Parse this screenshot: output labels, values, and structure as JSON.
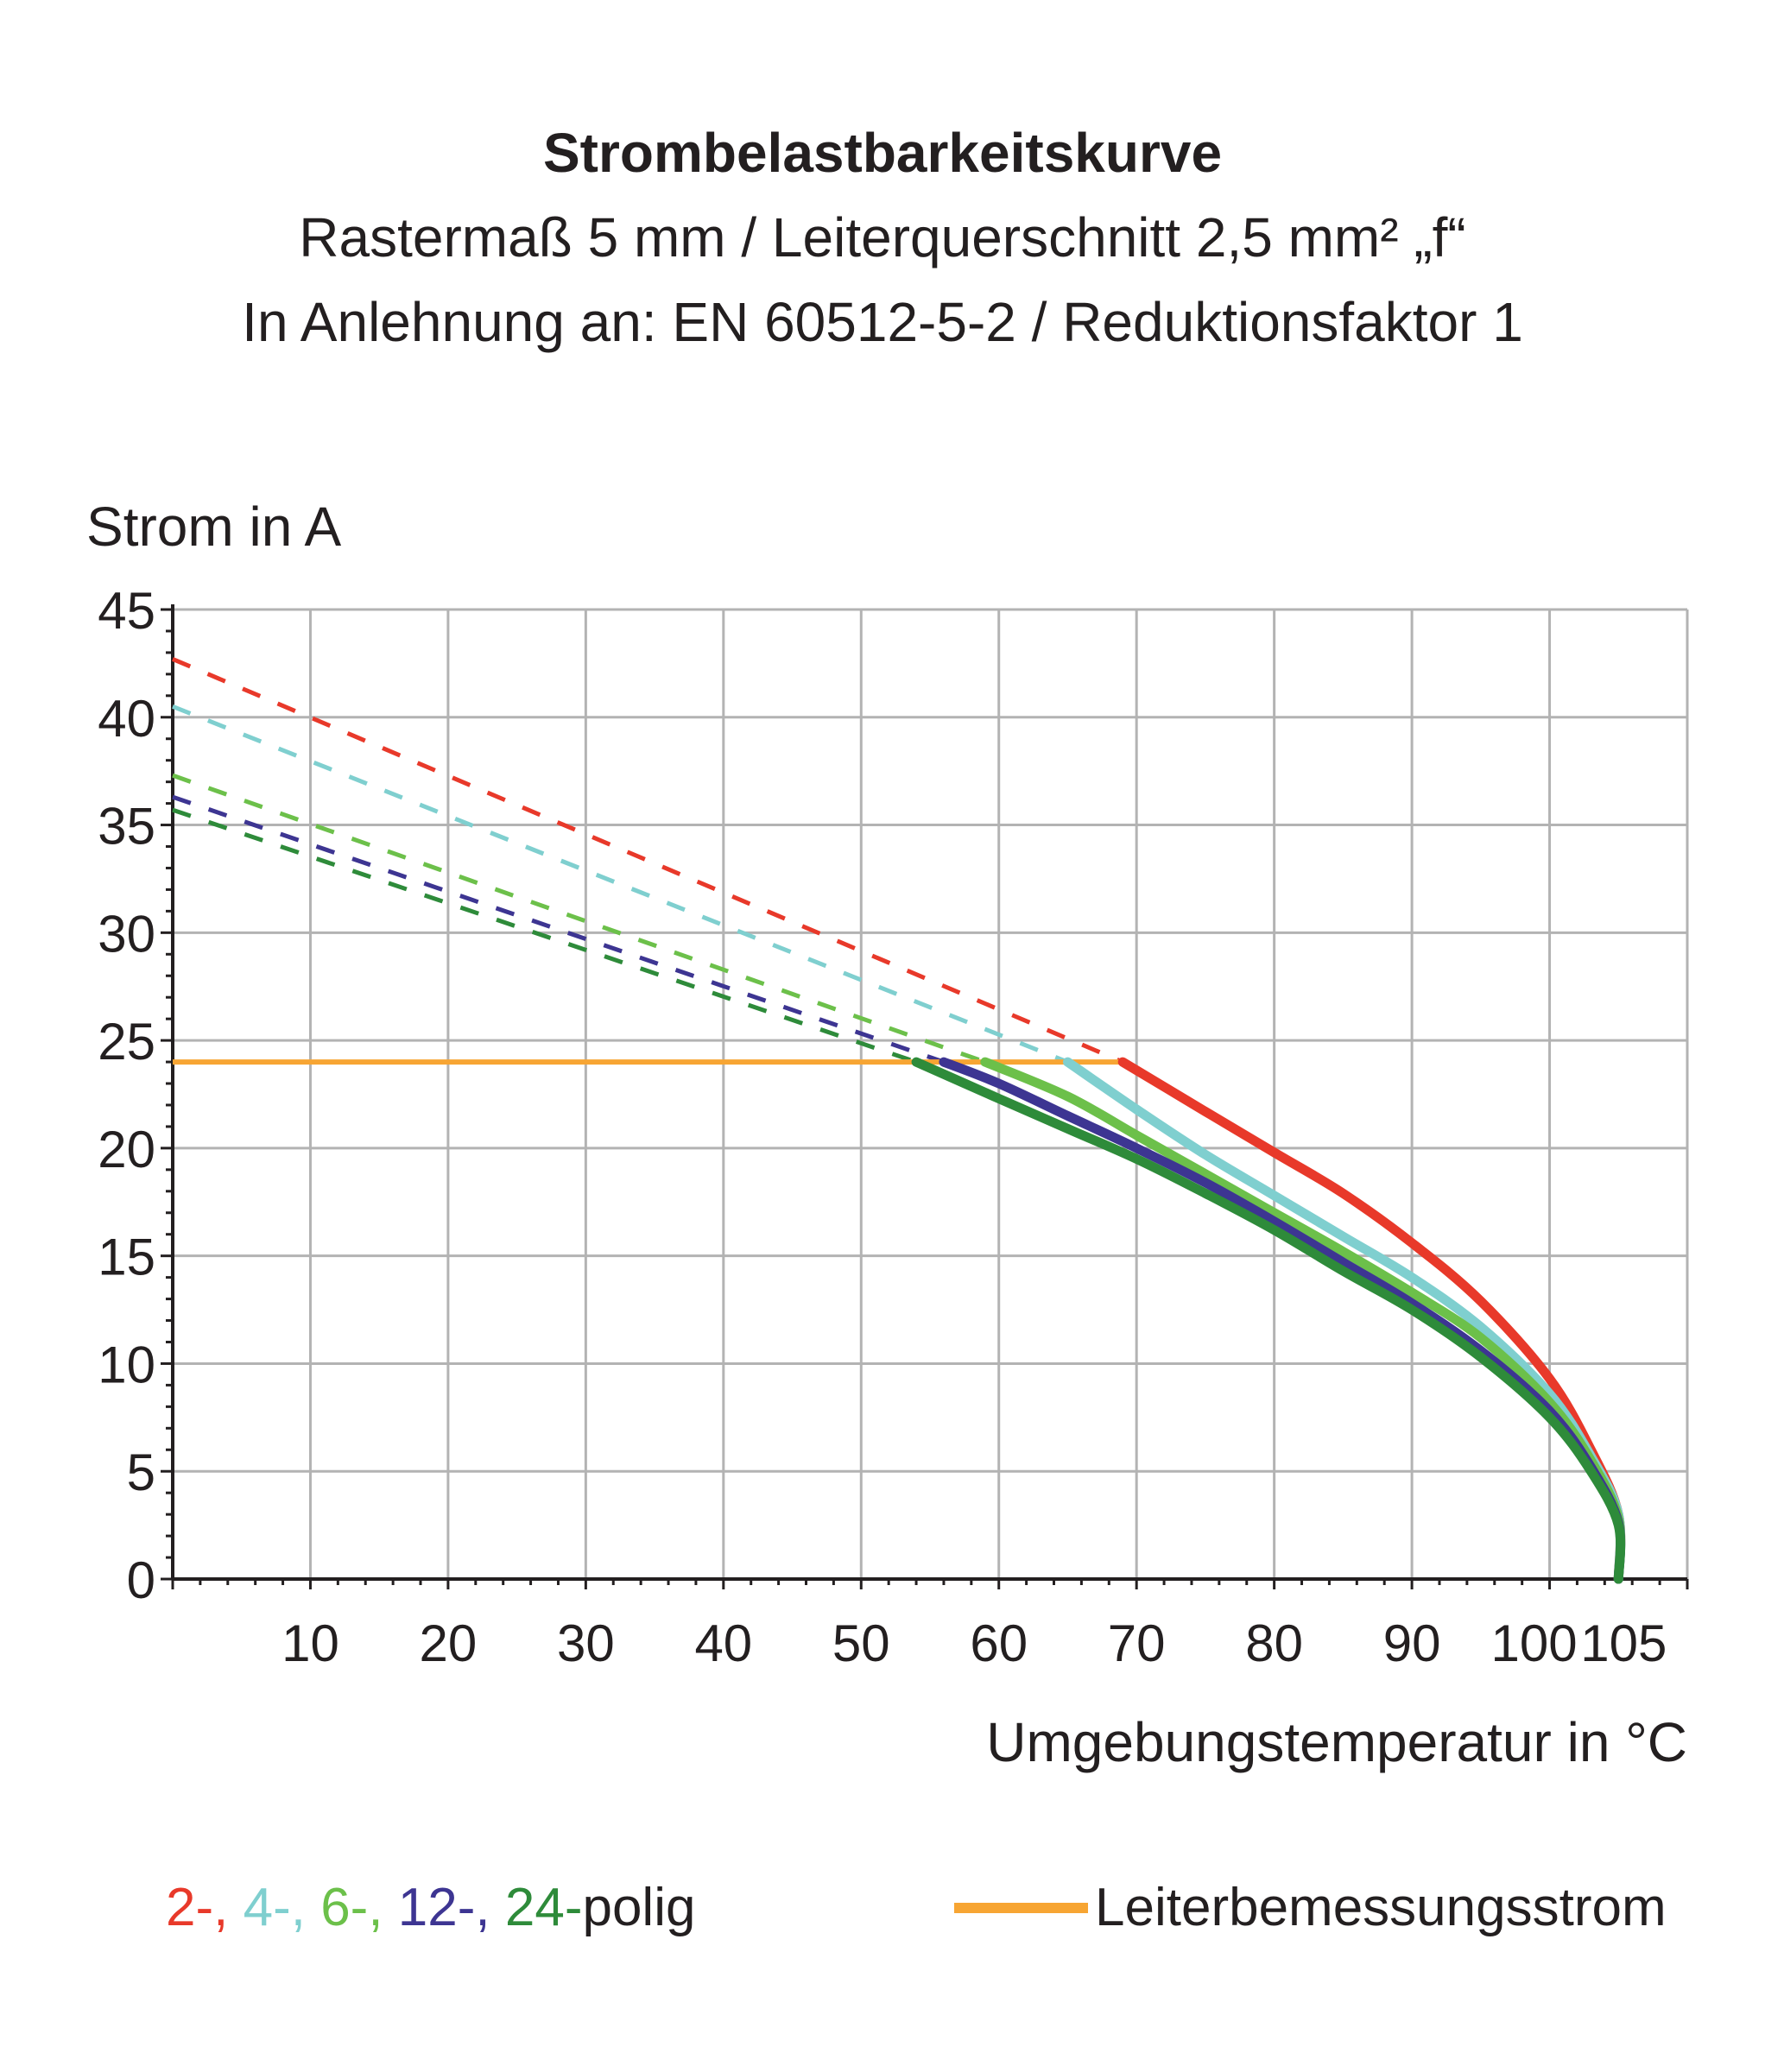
{
  "chart_data": {
    "type": "line",
    "title": "Strombelastbarkeitskurve",
    "subtitle_lines": [
      "Rastermaß 5 mm / Leiterquerschnitt 2,5 mm² „f“",
      "In Anlehnung an: EN 60512-5-2 / Reduktionsfaktor 1"
    ],
    "ylabel": "Strom in A",
    "xlabel": "Umgebungstemperatur in °C",
    "xlim": [
      0,
      110
    ],
    "ylim": [
      0,
      45
    ],
    "xticks": [
      10,
      20,
      30,
      40,
      50,
      60,
      70,
      80,
      90,
      100,
      105
    ],
    "yticks": [
      0,
      5,
      10,
      15,
      20,
      25,
      30,
      35,
      40,
      45
    ],
    "rated_current": {
      "label": "Leiterbemessungsstrom",
      "value": 24,
      "x_range": [
        0,
        69
      ],
      "color": "#f7a533"
    },
    "series": [
      {
        "name": "2-",
        "color": "#e8392a",
        "dashed": {
          "x": [
            0,
            69
          ],
          "y": [
            42.7,
            24
          ]
        },
        "solid": {
          "x": [
            69,
            75,
            80,
            85,
            90,
            95,
            100,
            103,
            105,
            105
          ],
          "y": [
            24,
            21.7,
            19.8,
            17.9,
            15.6,
            12.9,
            9.3,
            6.0,
            3.0,
            0
          ]
        }
      },
      {
        "name": "4-",
        "color": "#7fcfcf",
        "dashed": {
          "x": [
            0,
            65
          ],
          "y": [
            40.5,
            24
          ]
        },
        "solid": {
          "x": [
            65,
            70,
            75,
            80,
            85,
            90,
            95,
            100,
            103,
            105,
            105
          ],
          "y": [
            24,
            21.8,
            19.7,
            17.8,
            15.9,
            14.0,
            11.7,
            8.6,
            5.7,
            3.0,
            0
          ]
        }
      },
      {
        "name": "6-",
        "color": "#6cc04a",
        "dashed": {
          "x": [
            0,
            59
          ],
          "y": [
            37.3,
            24
          ]
        },
        "solid": {
          "x": [
            59,
            65,
            70,
            75,
            80,
            85,
            90,
            95,
            100,
            103,
            105,
            105
          ],
          "y": [
            24,
            22.4,
            20.6,
            18.8,
            17.0,
            15.2,
            13.3,
            11.2,
            8.2,
            5.5,
            2.8,
            0
          ]
        }
      },
      {
        "name": "12-",
        "color": "#3d3592",
        "dashed": {
          "x": [
            0,
            56
          ],
          "y": [
            36.3,
            24
          ]
        },
        "solid": {
          "x": [
            56,
            60,
            65,
            70,
            75,
            80,
            85,
            90,
            95,
            100,
            103,
            105,
            105
          ],
          "y": [
            24,
            23.0,
            21.5,
            20.0,
            18.4,
            16.6,
            14.7,
            12.8,
            10.6,
            7.8,
            5.2,
            2.6,
            0
          ]
        }
      },
      {
        "name": "24-",
        "color": "#2e8b3a",
        "dashed": {
          "x": [
            0,
            54
          ],
          "y": [
            35.7,
            24
          ]
        },
        "solid": {
          "x": [
            54,
            60,
            65,
            70,
            75,
            80,
            85,
            90,
            95,
            100,
            103,
            105,
            105
          ],
          "y": [
            24,
            22.3,
            20.9,
            19.5,
            17.9,
            16.2,
            14.3,
            12.5,
            10.3,
            7.5,
            5.0,
            2.5,
            0
          ]
        }
      }
    ],
    "legend": {
      "poles": [
        "2-,",
        "4-,",
        "6-,",
        "12-,",
        "24-"
      ],
      "suffix": "polig"
    },
    "grid": true
  }
}
